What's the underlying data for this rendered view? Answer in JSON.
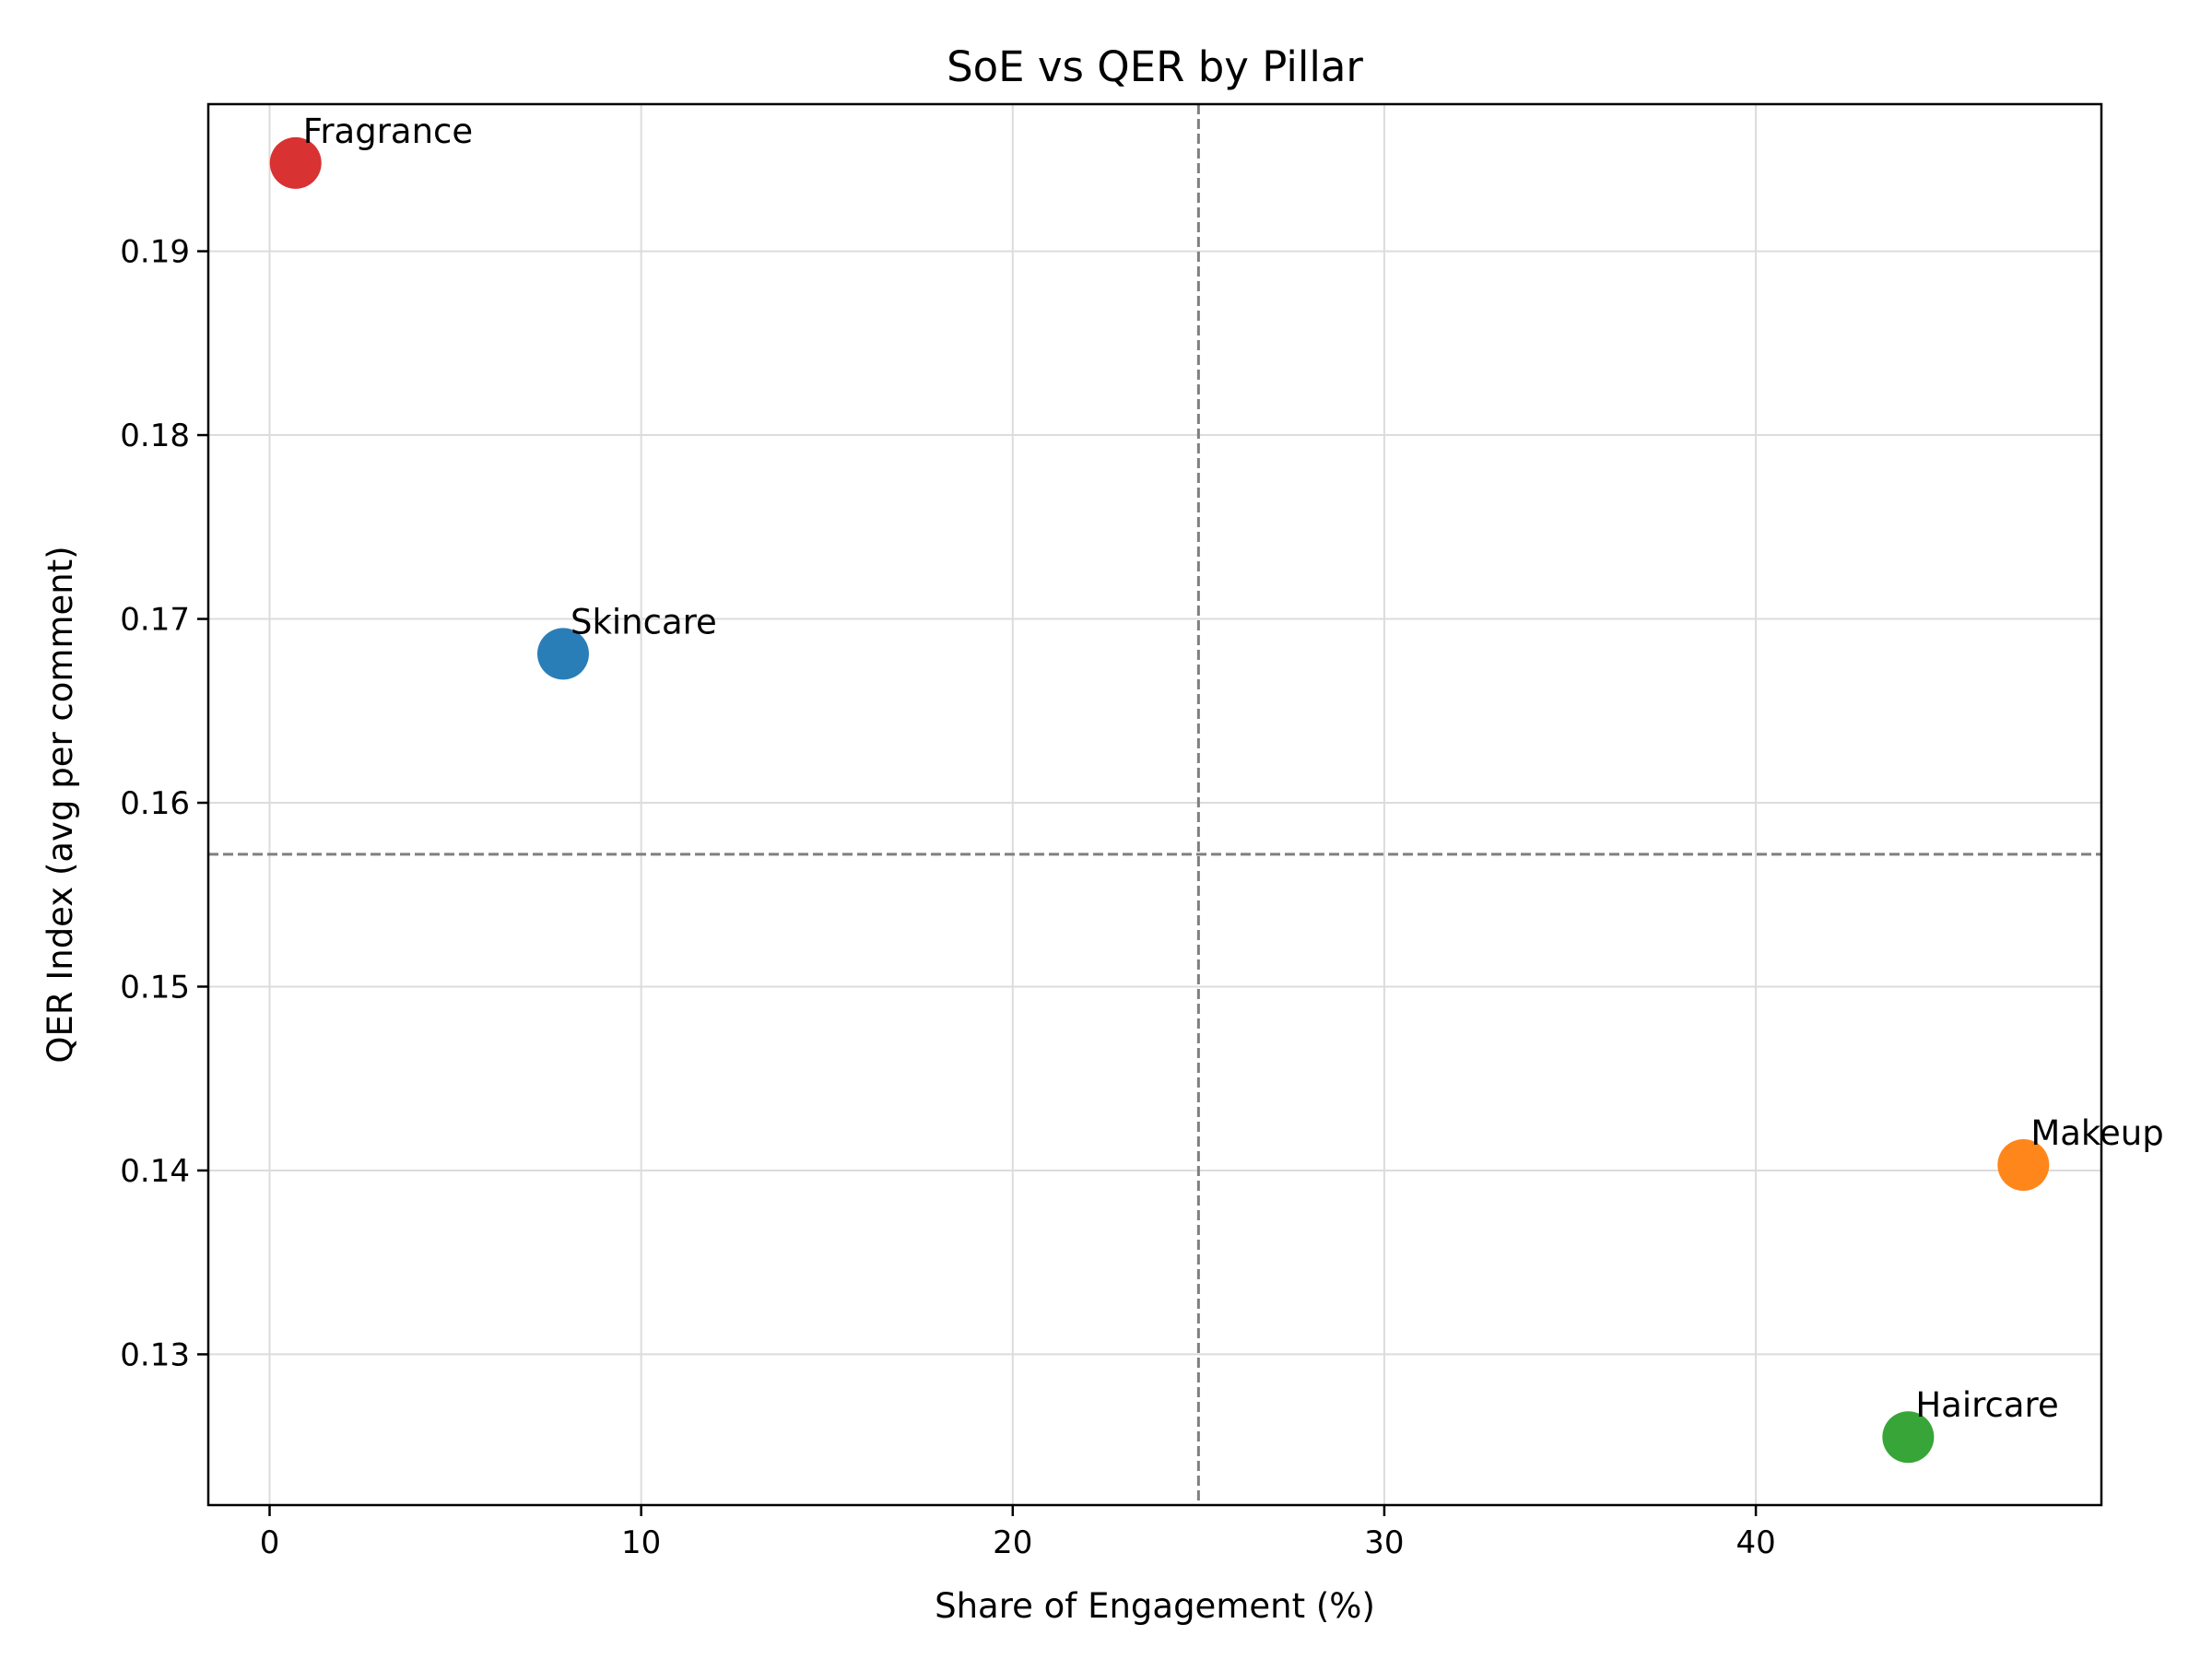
{
  "chart_data": {
    "type": "scatter",
    "title": "SoE vs QER by Pillar",
    "xlabel": "Share of Engagement (%)",
    "ylabel": "QER Index (avg per comment)",
    "xlim": [
      -1.65,
      49.3
    ],
    "ylim": [
      0.1218,
      0.198
    ],
    "xticks": [
      0,
      10,
      20,
      30,
      40
    ],
    "xtick_labels": [
      "0",
      "10",
      "20",
      "30",
      "40"
    ],
    "yticks": [
      0.13,
      0.14,
      0.15,
      0.16,
      0.17,
      0.18,
      0.19
    ],
    "ytick_labels": [
      "0.13",
      "0.14",
      "0.15",
      "0.16",
      "0.17",
      "0.18",
      "0.19"
    ],
    "grid": true,
    "reference_lines": {
      "x": 25.0,
      "y": 0.1572
    },
    "points": [
      {
        "label": "Skincare",
        "x": 7.9,
        "y": 0.1681,
        "color": "#1f77b4"
      },
      {
        "label": "Makeup",
        "x": 47.2,
        "y": 0.1403,
        "color": "#ff7f0e"
      },
      {
        "label": "Haircare",
        "x": 44.1,
        "y": 0.1255,
        "color": "#2ca02c"
      },
      {
        "label": "Fragrance",
        "x": 0.7,
        "y": 0.1948,
        "color": "#d62728"
      }
    ]
  }
}
